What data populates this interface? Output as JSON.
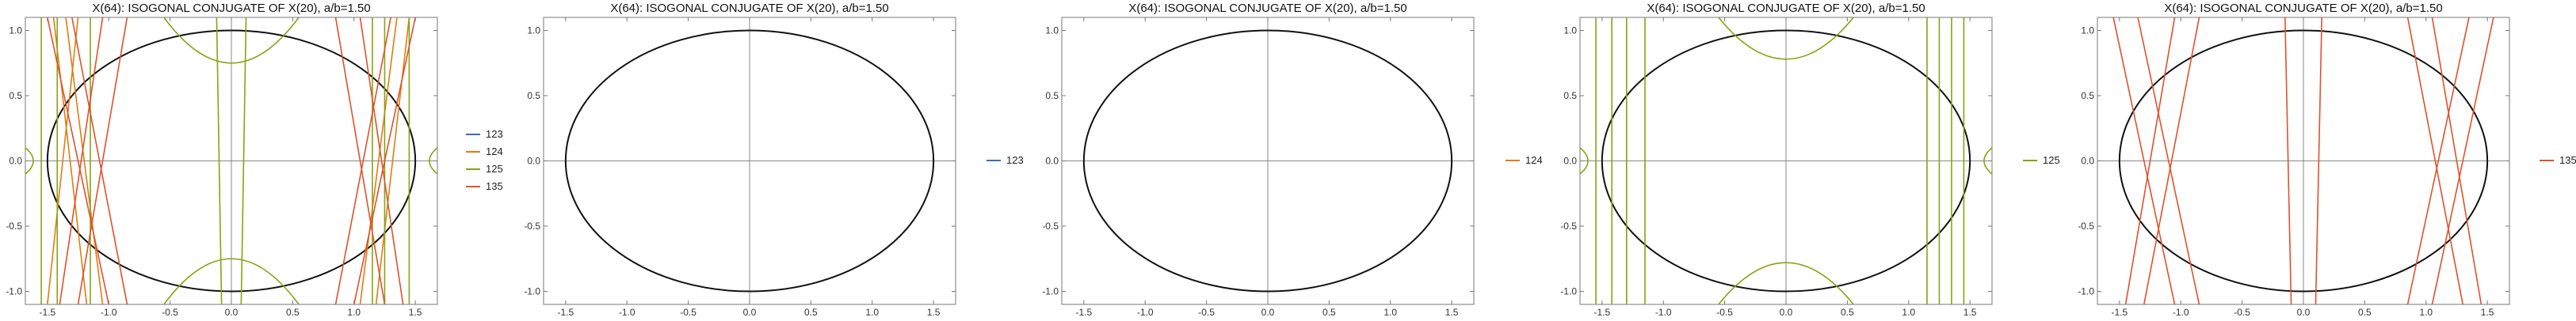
{
  "colors": {
    "123": "#3b6dba",
    "124": "#e07d10",
    "125": "#86a413",
    "135": "#e0512d",
    "ellipse": "#111111",
    "axis": "#888888"
  },
  "chart_data": [
    {
      "type": "line",
      "title": "X(64): ISOGONAL CONJUGATE OF X(20), a/b=1.50",
      "xlim": [
        -1.68,
        1.68
      ],
      "ylim": [
        -1.1,
        1.1
      ],
      "xticks": [
        -1.5,
        -1.0,
        -0.5,
        0.0,
        0.5,
        1.0,
        1.5
      ],
      "xtick_labels": [
        "-1.5",
        "-1.0",
        "-0.5",
        "0.0",
        "0.5",
        "1.0",
        "1.5"
      ],
      "yticks": [
        -1.0,
        -0.5,
        0.0,
        0.5,
        1.0
      ],
      "ytick_labels": [
        "-1.0",
        "-0.5",
        "0.0",
        "0.5",
        "1.0"
      ],
      "ellipse": {
        "a": 1.5,
        "b": 1.0
      },
      "legend": [
        "123",
        "124",
        "125",
        "135"
      ],
      "legend_position": "right",
      "series": [
        {
          "name": "123",
          "segments": []
        },
        {
          "name": "124",
          "segments": [
            [
              [
                -1.45,
                1.1
              ],
              [
                -1.18,
                -1.1
              ]
            ],
            [
              [
                -1.35,
                1.1
              ],
              [
                -1.05,
                -1.1
              ]
            ],
            [
              [
                1.45,
                1.1
              ],
              [
                1.18,
                -1.1
              ]
            ],
            [
              [
                1.35,
                1.1
              ],
              [
                1.05,
                -1.1
              ]
            ],
            [
              [
                -1.5,
                -1.1
              ],
              [
                -1.25,
                1.1
              ]
            ]
          ]
        },
        {
          "name": "125",
          "segments": [
            [
              [
                -1.55,
                1.1
              ],
              [
                -1.55,
                -1.1
              ]
            ],
            [
              [
                -1.42,
                1.1
              ],
              [
                -1.42,
                -1.1
              ]
            ],
            [
              [
                -1.15,
                1.1
              ],
              [
                -1.15,
                -1.1
              ]
            ],
            [
              [
                1.15,
                1.1
              ],
              [
                1.15,
                -1.1
              ]
            ],
            [
              [
                1.45,
                1.1
              ],
              [
                1.45,
                -1.1
              ]
            ],
            [
              [
                1.25,
                1.1
              ],
              [
                1.25,
                -1.1
              ]
            ],
            [
              [
                -0.12,
                1.1
              ],
              [
                -0.08,
                -1.1
              ]
            ],
            [
              [
                0.12,
                1.1
              ],
              [
                0.08,
                -1.1
              ]
            ]
          ],
          "curves": [
            [
              [
                -0.55,
                1.1
              ],
              [
                0,
                0.75
              ],
              [
                0.55,
                1.1
              ]
            ],
            [
              [
                -0.55,
                -1.1
              ],
              [
                0,
                -0.75
              ],
              [
                0.55,
                -1.1
              ]
            ],
            [
              [
                -1.68,
                0.1
              ],
              [
                -1.55,
                0
              ],
              [
                -1.68,
                -0.1
              ]
            ],
            [
              [
                1.68,
                0.1
              ],
              [
                1.55,
                0
              ],
              [
                1.68,
                -0.1
              ]
            ]
          ]
        },
        {
          "name": "135",
          "segments": [
            [
              [
                -1.5,
                1.1
              ],
              [
                -1.0,
                -1.1
              ]
            ],
            [
              [
                -1.3,
                1.1
              ],
              [
                -0.85,
                -1.1
              ]
            ],
            [
              [
                -1.05,
                1.1
              ],
              [
                -1.4,
                -1.1
              ]
            ],
            [
              [
                -0.85,
                1.1
              ],
              [
                -1.25,
                -1.1
              ]
            ],
            [
              [
                1.5,
                1.1
              ],
              [
                1.0,
                -1.1
              ]
            ],
            [
              [
                1.3,
                1.1
              ],
              [
                0.85,
                -1.1
              ]
            ],
            [
              [
                1.05,
                1.1
              ],
              [
                1.4,
                -1.1
              ]
            ],
            [
              [
                0.85,
                1.1
              ],
              [
                1.25,
                -1.1
              ]
            ]
          ]
        }
      ]
    },
    {
      "type": "line",
      "title": "X(64): ISOGONAL CONJUGATE OF X(20), a/b=1.50",
      "xlim": [
        -1.68,
        1.68
      ],
      "ylim": [
        -1.1,
        1.1
      ],
      "xticks": [
        -1.5,
        -1.0,
        -0.5,
        0.0,
        0.5,
        1.0,
        1.5
      ],
      "xtick_labels": [
        "-1.5",
        "-1.0",
        "-0.5",
        "0.0",
        "0.5",
        "1.0",
        "1.5"
      ],
      "yticks": [
        -1.0,
        -0.5,
        0.0,
        0.5,
        1.0
      ],
      "ytick_labels": [
        "-1.0",
        "-0.5",
        "0.0",
        "0.5",
        "1.0"
      ],
      "ellipse": {
        "a": 1.5,
        "b": 1.0
      },
      "legend": [
        "123"
      ],
      "legend_position": "right",
      "series": [
        {
          "name": "123",
          "segments": []
        }
      ]
    },
    {
      "type": "line",
      "title": "X(64): ISOGONAL CONJUGATE OF X(20), a/b=1.50",
      "xlim": [
        -1.68,
        1.68
      ],
      "ylim": [
        -1.1,
        1.1
      ],
      "xticks": [
        -1.5,
        -1.0,
        -0.5,
        0.0,
        0.5,
        1.0,
        1.5
      ],
      "xtick_labels": [
        "-1.5",
        "-1.0",
        "-0.5",
        "0.0",
        "0.5",
        "1.0",
        "1.5"
      ],
      "yticks": [
        -1.0,
        -0.5,
        0.0,
        0.5,
        1.0
      ],
      "ytick_labels": [
        "-1.0",
        "-0.5",
        "0.0",
        "0.5",
        "1.0"
      ],
      "ellipse": {
        "a": 1.5,
        "b": 1.0
      },
      "legend": [
        "124"
      ],
      "legend_position": "right",
      "series": [
        {
          "name": "124",
          "segments": []
        }
      ]
    },
    {
      "type": "line",
      "title": "X(64): ISOGONAL CONJUGATE OF X(20), a/b=1.50",
      "xlim": [
        -1.68,
        1.68
      ],
      "ylim": [
        -1.1,
        1.1
      ],
      "xticks": [
        -1.5,
        -1.0,
        -0.5,
        0.0,
        0.5,
        1.0,
        1.5
      ],
      "xtick_labels": [
        "-1.5",
        "-1.0",
        "-0.5",
        "0.0",
        "0.5",
        "1.0",
        "1.5"
      ],
      "yticks": [
        -1.0,
        -0.5,
        0.0,
        0.5,
        1.0
      ],
      "ytick_labels": [
        "-1.0",
        "-0.5",
        "0.0",
        "0.5",
        "1.0"
      ],
      "ellipse": {
        "a": 1.5,
        "b": 1.0
      },
      "legend": [
        "125"
      ],
      "legend_position": "right",
      "series": [
        {
          "name": "125",
          "segments": [
            [
              [
                -1.55,
                1.1
              ],
              [
                -1.55,
                -1.1
              ]
            ],
            [
              [
                -1.42,
                1.1
              ],
              [
                -1.42,
                -1.1
              ]
            ],
            [
              [
                -1.3,
                1.1
              ],
              [
                -1.3,
                -1.1
              ]
            ],
            [
              [
                -1.15,
                1.1
              ],
              [
                -1.15,
                -1.1
              ]
            ],
            [
              [
                1.15,
                1.1
              ],
              [
                1.15,
                -1.1
              ]
            ],
            [
              [
                1.45,
                1.1
              ],
              [
                1.45,
                -1.1
              ]
            ],
            [
              [
                1.25,
                1.1
              ],
              [
                1.25,
                -1.1
              ]
            ],
            [
              [
                1.35,
                1.1
              ],
              [
                1.35,
                -1.1
              ]
            ]
          ],
          "curves": [
            [
              [
                -0.55,
                1.1
              ],
              [
                0,
                0.78
              ],
              [
                0.55,
                1.1
              ]
            ],
            [
              [
                -0.55,
                -1.1
              ],
              [
                0,
                -0.78
              ],
              [
                0.55,
                -1.1
              ]
            ],
            [
              [
                -1.68,
                0.1
              ],
              [
                -1.55,
                0
              ],
              [
                -1.68,
                -0.1
              ]
            ],
            [
              [
                1.68,
                0.1
              ],
              [
                1.55,
                0
              ],
              [
                1.68,
                -0.1
              ]
            ]
          ]
        }
      ]
    },
    {
      "type": "line",
      "title": "X(64): ISOGONAL CONJUGATE OF X(20), a/b=1.50",
      "xlim": [
        -1.68,
        1.68
      ],
      "ylim": [
        -1.1,
        1.1
      ],
      "xticks": [
        -1.5,
        -1.0,
        -0.5,
        0.0,
        0.5,
        1.0,
        1.5
      ],
      "xtick_labels": [
        "-1.5",
        "-1.0",
        "-0.5",
        "0.0",
        "0.5",
        "1.0",
        "1.5"
      ],
      "yticks": [
        -1.0,
        -0.5,
        0.0,
        0.5,
        1.0
      ],
      "ytick_labels": [
        "-1.0",
        "-0.5",
        "0.0",
        "0.5",
        "1.0"
      ],
      "ellipse": {
        "a": 1.5,
        "b": 1.0
      },
      "legend": [
        "135"
      ],
      "legend_position": "right",
      "series": [
        {
          "name": "135",
          "segments": [
            [
              [
                -1.55,
                1.1
              ],
              [
                -1.05,
                -1.1
              ]
            ],
            [
              [
                -1.35,
                1.1
              ],
              [
                -0.85,
                -1.1
              ]
            ],
            [
              [
                -1.05,
                1.1
              ],
              [
                -1.45,
                -1.1
              ]
            ],
            [
              [
                -0.85,
                1.1
              ],
              [
                -1.3,
                -1.1
              ]
            ],
            [
              [
                1.55,
                1.1
              ],
              [
                1.05,
                -1.1
              ]
            ],
            [
              [
                1.35,
                1.1
              ],
              [
                0.85,
                -1.1
              ]
            ],
            [
              [
                1.05,
                1.1
              ],
              [
                1.45,
                -1.1
              ]
            ],
            [
              [
                0.85,
                1.1
              ],
              [
                1.3,
                -1.1
              ]
            ],
            [
              [
                -0.15,
                1.1
              ],
              [
                -0.1,
                -1.1
              ]
            ],
            [
              [
                0.15,
                1.1
              ],
              [
                0.1,
                -1.1
              ]
            ]
          ]
        }
      ]
    }
  ]
}
